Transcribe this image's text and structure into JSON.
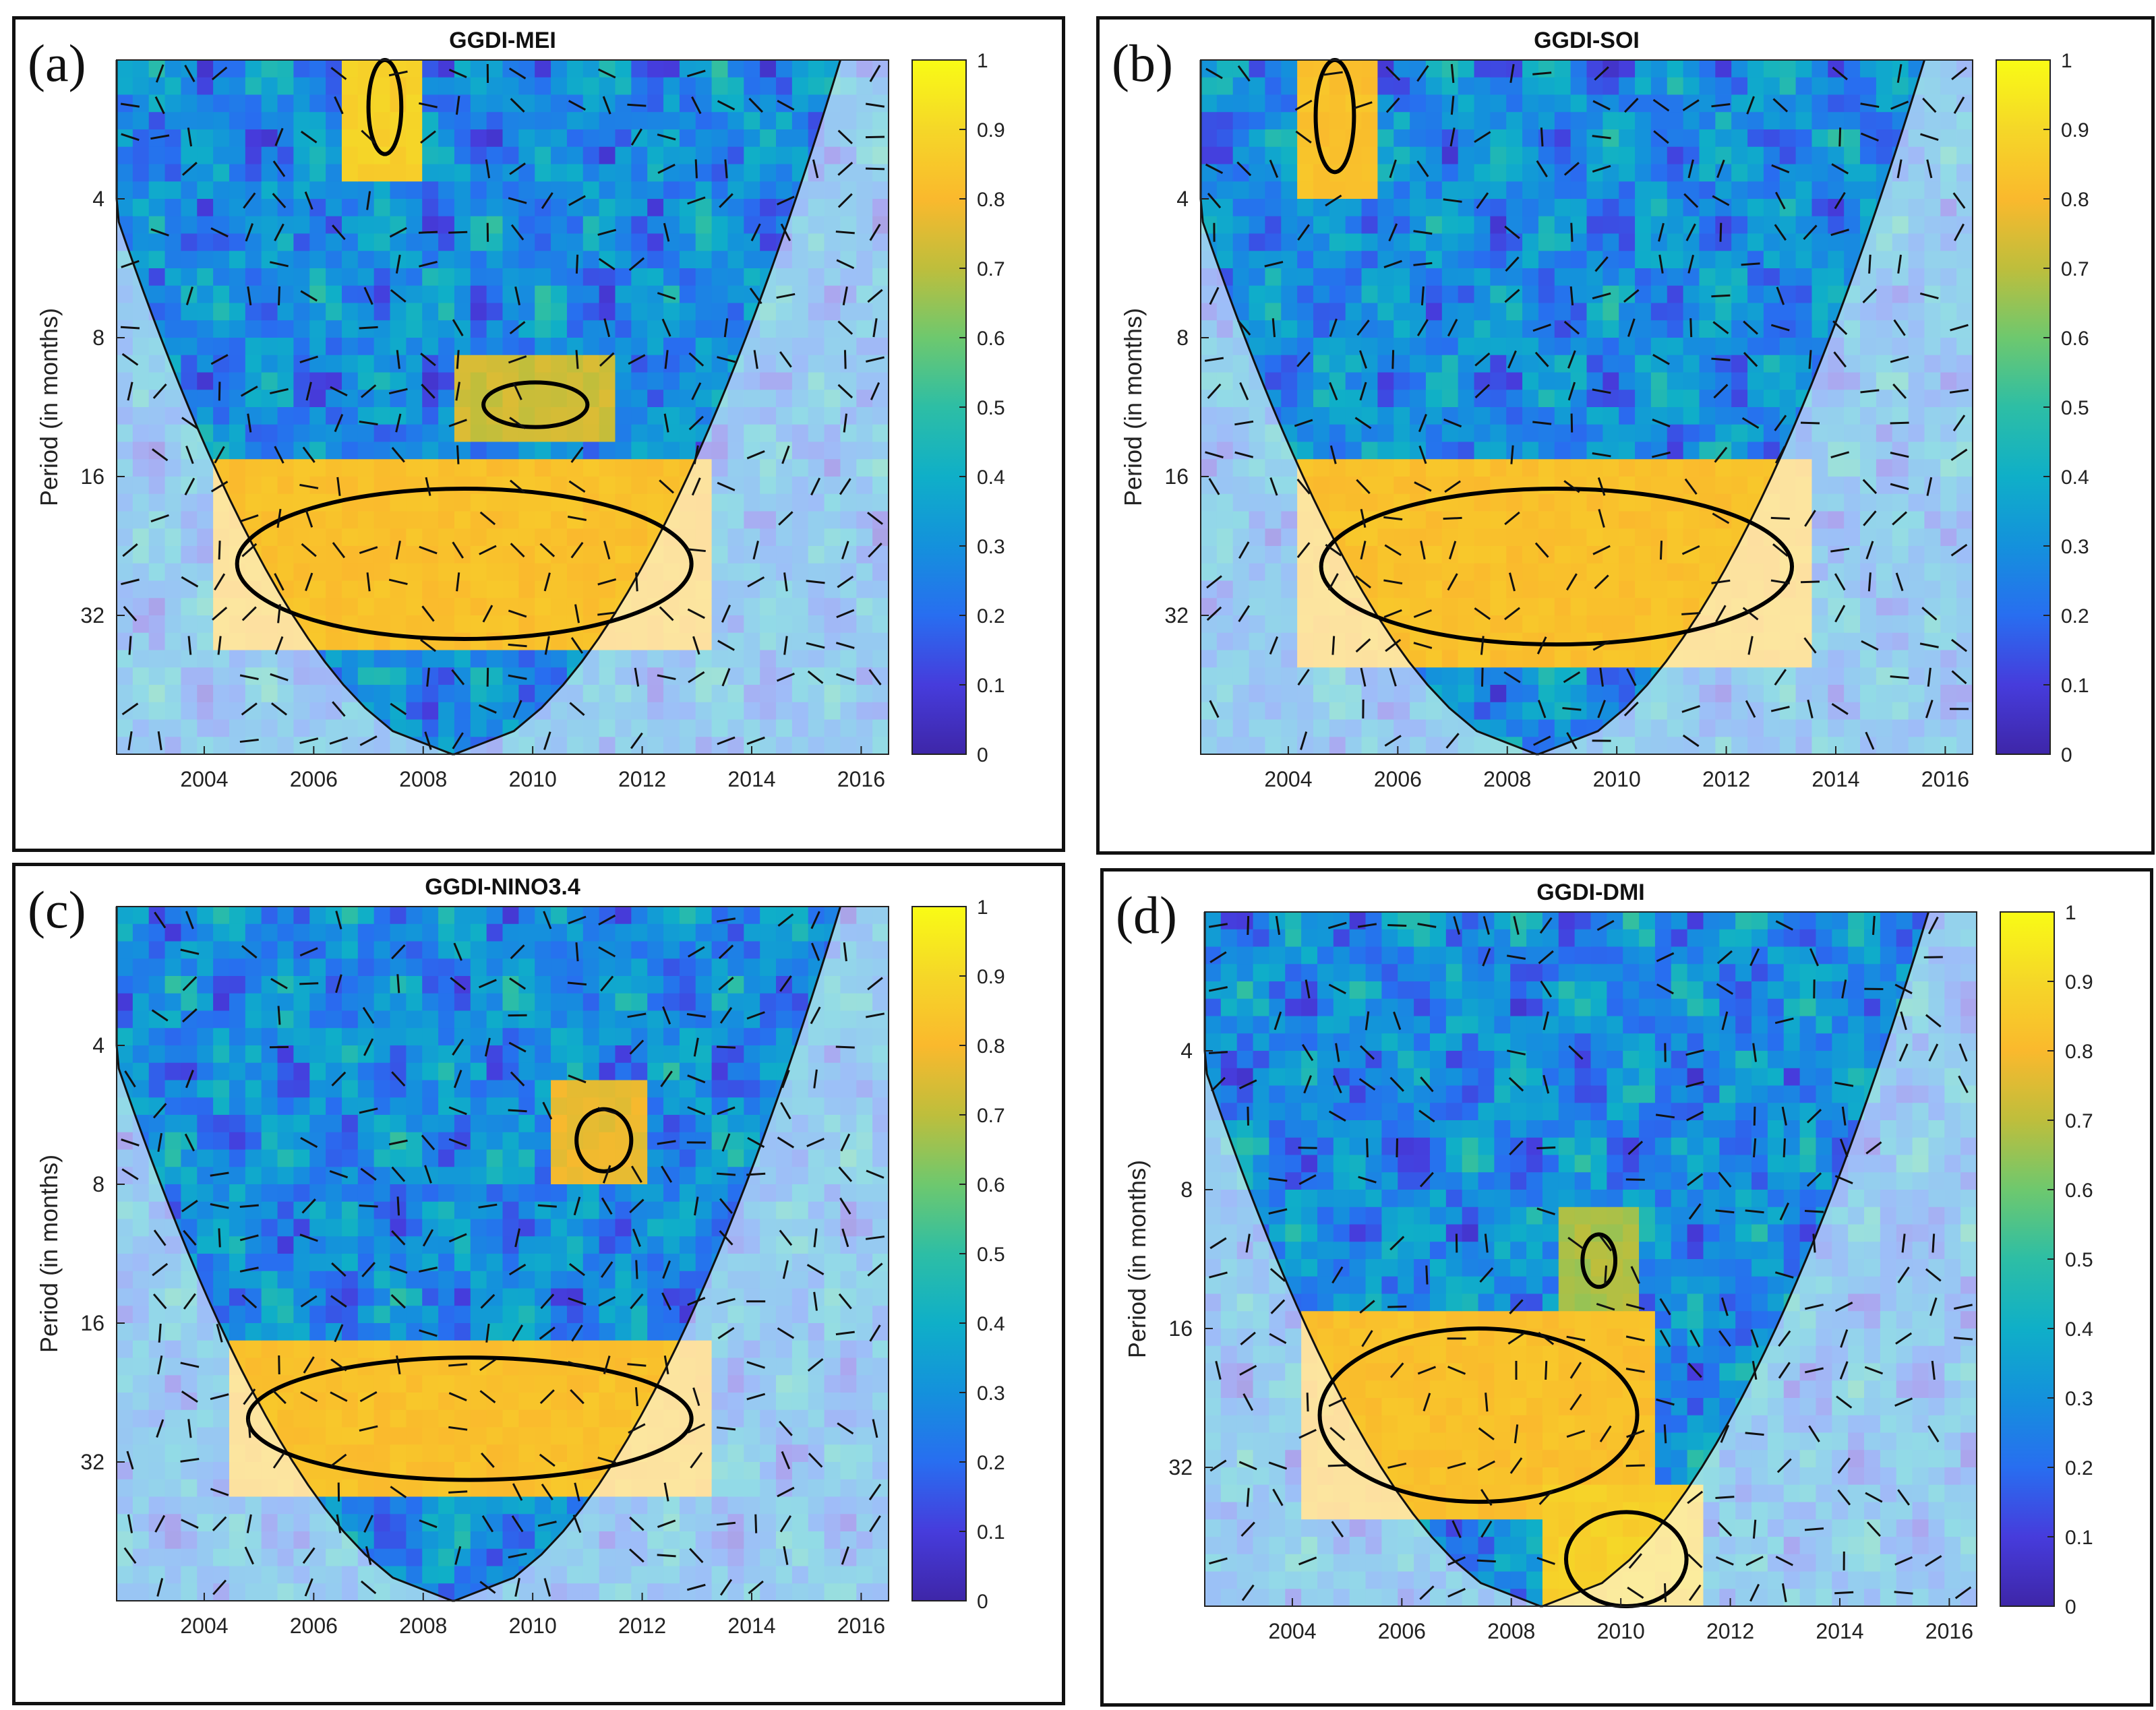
{
  "chart_data": [
    {
      "type": "heatmap",
      "panel_label": "(a)",
      "title": "GGDI-MEI",
      "ylabel": "Period (in months)",
      "xlabel": "",
      "xlim": [
        2002.4,
        2016.5
      ],
      "ylim": [
        2,
        64
      ],
      "x_ticks": [
        2004,
        2006,
        2008,
        2010,
        2012,
        2014,
        2016
      ],
      "y_ticks": [
        4,
        8,
        16,
        32
      ],
      "colorbar": {
        "range": [
          0,
          1
        ],
        "ticks": [
          0,
          0.1,
          0.2,
          0.3,
          0.4,
          0.5,
          0.6,
          0.7,
          0.8,
          0.9,
          1
        ]
      },
      "significant_regions": [
        {
          "x": [
            2004.6,
            2012.9
          ],
          "period": [
            17,
            36
          ],
          "coherence": 0.85
        },
        {
          "x": [
            2009.1,
            2011.0
          ],
          "period": [
            10,
            12.5
          ],
          "coherence": 0.75
        },
        {
          "x": [
            2007.0,
            2007.6
          ],
          "period": [
            2,
            3.2
          ],
          "coherence": 0.9
        }
      ],
      "inside_cone_region": "significant 16-32 month coherence band 2005-2013",
      "note": "Wavelet coherence with phase arrows; shaded area outside cone of influence"
    },
    {
      "type": "heatmap",
      "panel_label": "(b)",
      "title": "GGDI-SOI",
      "ylabel": "Period (in months)",
      "xlabel": "",
      "xlim": [
        2002.4,
        2016.5
      ],
      "ylim": [
        2,
        64
      ],
      "x_ticks": [
        2004,
        2006,
        2008,
        2010,
        2012,
        2014,
        2016
      ],
      "y_ticks": [
        4,
        8,
        16,
        32
      ],
      "colorbar": {
        "range": [
          0,
          1
        ],
        "ticks": [
          0,
          0.1,
          0.2,
          0.3,
          0.4,
          0.5,
          0.6,
          0.7,
          0.8,
          0.9,
          1
        ]
      },
      "significant_regions": [
        {
          "x": [
            2004.6,
            2013.2
          ],
          "period": [
            17,
            37
          ],
          "coherence": 0.85
        },
        {
          "x": [
            2004.5,
            2005.2
          ],
          "period": [
            2,
            3.5
          ],
          "coherence": 0.85
        }
      ],
      "note": "Wavelet coherence with phase arrows; shaded area outside cone of influence"
    },
    {
      "type": "heatmap",
      "panel_label": "(c)",
      "title": "GGDI-NINO3.4",
      "ylabel": "Period (in months)",
      "xlabel": "",
      "xlim": [
        2002.4,
        2016.5
      ],
      "ylim": [
        2,
        64
      ],
      "x_ticks": [
        2004,
        2006,
        2008,
        2010,
        2012,
        2014,
        2016
      ],
      "y_ticks": [
        4,
        8,
        16,
        32
      ],
      "colorbar": {
        "range": [
          0,
          1
        ],
        "ticks": [
          0,
          0.1,
          0.2,
          0.3,
          0.4,
          0.5,
          0.6,
          0.7,
          0.8,
          0.9,
          1
        ]
      },
      "significant_regions": [
        {
          "x": [
            2004.8,
            2012.9
          ],
          "period": [
            19,
            35
          ],
          "coherence": 0.85
        },
        {
          "x": [
            2010.8,
            2011.8
          ],
          "period": [
            5.5,
            7.5
          ],
          "coherence": 0.8
        }
      ],
      "note": "Wavelet coherence with phase arrows; shaded area outside cone of influence"
    },
    {
      "type": "heatmap",
      "panel_label": "(d)",
      "title": "GGDI-DMI",
      "ylabel": "Period (in months)",
      "xlabel": "",
      "xlim": [
        2002.4,
        2016.5
      ],
      "ylim": [
        2,
        64
      ],
      "x_ticks": [
        2004,
        2006,
        2008,
        2010,
        2012,
        2014,
        2016
      ],
      "y_ticks": [
        4,
        8,
        16,
        32
      ],
      "colorbar": {
        "range": [
          0,
          1
        ],
        "ticks": [
          0,
          0.1,
          0.2,
          0.3,
          0.4,
          0.5,
          0.6,
          0.7,
          0.8,
          0.9,
          1
        ]
      },
      "significant_regions": [
        {
          "x": [
            2004.5,
            2010.3
          ],
          "period": [
            16,
            38
          ],
          "coherence": 0.85
        },
        {
          "x": [
            2009.0,
            2011.2
          ],
          "period": [
            40,
            64
          ],
          "coherence": 0.9
        },
        {
          "x": [
            2009.3,
            2009.9
          ],
          "period": [
            10,
            13
          ],
          "coherence": 0.7
        }
      ],
      "note": "Wavelet coherence with phase arrows; shaded area outside cone of influence"
    }
  ],
  "colors": {
    "low": "#3e26a8",
    "mid": "#2eb7a0",
    "high": "#f9fb15",
    "contour": "#000000",
    "coi_shade": "rgba(255,255,255,0.55)"
  }
}
